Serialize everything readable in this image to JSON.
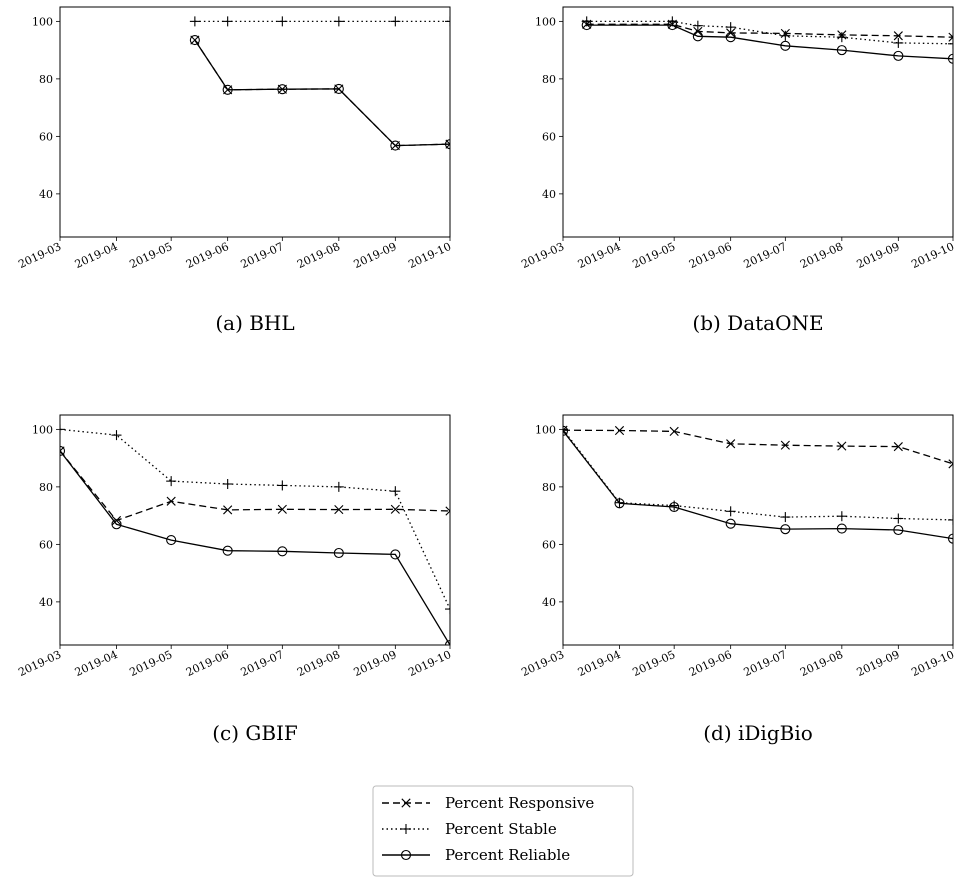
{
  "chart_data": [
    {
      "type": "line",
      "caption": "(a) BHL",
      "x_ticks": [
        "2019-03",
        "2019-04",
        "2019-05",
        "2019-06",
        "2019-07",
        "2019-08",
        "2019-09",
        "2019-10"
      ],
      "y_ticks": [
        40,
        60,
        80,
        100
      ],
      "xlim": [
        "2019-03-01",
        "2019-10-01"
      ],
      "ylim": [
        25,
        105
      ],
      "series": [
        {
          "key": "responsive",
          "x": [
            "2019-05-14",
            "2019-06-01",
            "2019-07-01",
            "2019-08-01",
            "2019-09-01",
            "2019-10-01"
          ],
          "y": [
            93.5,
            76.2,
            76.4,
            76.5,
            56.8,
            57.3
          ]
        },
        {
          "key": "stable",
          "x": [
            "2019-05-14",
            "2019-06-01",
            "2019-07-01",
            "2019-08-01",
            "2019-09-01",
            "2019-10-01"
          ],
          "y": [
            100,
            100,
            100,
            100,
            100,
            100
          ]
        },
        {
          "key": "reliable",
          "x": [
            "2019-05-14",
            "2019-06-01",
            "2019-07-01",
            "2019-08-01",
            "2019-09-01",
            "2019-10-01"
          ],
          "y": [
            93.5,
            76.2,
            76.4,
            76.5,
            56.8,
            57.3
          ]
        }
      ]
    },
    {
      "type": "line",
      "caption": "(b) DataONE",
      "x_ticks": [
        "2019-03",
        "2019-04",
        "2019-05",
        "2019-06",
        "2019-07",
        "2019-08",
        "2019-09",
        "2019-10"
      ],
      "y_ticks": [
        40,
        60,
        80,
        100
      ],
      "xlim": [
        "2019-03-01",
        "2019-10-01"
      ],
      "ylim": [
        25,
        105
      ],
      "series": [
        {
          "key": "responsive",
          "x": [
            "2019-03-14",
            "2019-04-30",
            "2019-05-14",
            "2019-06-01",
            "2019-07-01",
            "2019-08-01",
            "2019-09-01",
            "2019-10-01"
          ],
          "y": [
            99,
            99,
            96.5,
            96,
            95.8,
            95.3,
            95,
            94.5
          ]
        },
        {
          "key": "stable",
          "x": [
            "2019-03-14",
            "2019-04-30",
            "2019-05-14",
            "2019-06-01",
            "2019-07-01",
            "2019-08-01",
            "2019-09-01",
            "2019-10-01"
          ],
          "y": [
            100,
            100,
            98.5,
            98,
            95,
            94.5,
            92.5,
            92.2
          ]
        },
        {
          "key": "reliable",
          "x": [
            "2019-03-14",
            "2019-04-30",
            "2019-05-14",
            "2019-06-01",
            "2019-07-01",
            "2019-08-01",
            "2019-09-01",
            "2019-10-01"
          ],
          "y": [
            98.7,
            98.7,
            94.8,
            94.5,
            91.5,
            90,
            88,
            87
          ]
        }
      ]
    },
    {
      "type": "line",
      "caption": "(c) GBIF",
      "x_ticks": [
        "2019-03",
        "2019-04",
        "2019-05",
        "2019-06",
        "2019-07",
        "2019-08",
        "2019-09",
        "2019-10"
      ],
      "y_ticks": [
        40,
        60,
        80,
        100
      ],
      "xlim": [
        "2019-03-01",
        "2019-10-01"
      ],
      "ylim": [
        25,
        105
      ],
      "series": [
        {
          "key": "responsive",
          "x": [
            "2019-03-01",
            "2019-04-01",
            "2019-05-01",
            "2019-06-01",
            "2019-07-01",
            "2019-08-01",
            "2019-09-01",
            "2019-10-01"
          ],
          "y": [
            92.5,
            68.3,
            75,
            72,
            72.2,
            72.1,
            72.2,
            71.6
          ]
        },
        {
          "key": "stable",
          "x": [
            "2019-03-01",
            "2019-04-01",
            "2019-05-01",
            "2019-06-01",
            "2019-07-01",
            "2019-08-01",
            "2019-09-01",
            "2019-10-01"
          ],
          "y": [
            100,
            98,
            82,
            81,
            80.5,
            80,
            78.5,
            37.5
          ]
        },
        {
          "key": "reliable",
          "x": [
            "2019-03-01",
            "2019-04-01",
            "2019-05-01",
            "2019-06-01",
            "2019-07-01",
            "2019-08-01",
            "2019-09-01",
            "2019-10-01"
          ],
          "y": [
            92.5,
            67,
            61.5,
            57.8,
            57.6,
            57,
            56.5,
            25
          ]
        }
      ]
    },
    {
      "type": "line",
      "caption": "(d) iDigBio",
      "x_ticks": [
        "2019-03",
        "2019-04",
        "2019-05",
        "2019-06",
        "2019-07",
        "2019-08",
        "2019-09",
        "2019-10"
      ],
      "y_ticks": [
        40,
        60,
        80,
        100
      ],
      "xlim": [
        "2019-03-01",
        "2019-10-01"
      ],
      "ylim": [
        25,
        105
      ],
      "series": [
        {
          "key": "responsive",
          "x": [
            "2019-03-01",
            "2019-04-01",
            "2019-05-01",
            "2019-06-01",
            "2019-07-01",
            "2019-08-01",
            "2019-09-01",
            "2019-10-01"
          ],
          "y": [
            99.7,
            99.6,
            99.3,
            95,
            94.5,
            94.2,
            94,
            88
          ]
        },
        {
          "key": "stable",
          "x": [
            "2019-03-01",
            "2019-04-01",
            "2019-05-01",
            "2019-06-01",
            "2019-07-01",
            "2019-08-01",
            "2019-09-01",
            "2019-10-01"
          ],
          "y": [
            100,
            74.5,
            73.5,
            71.5,
            69.5,
            69.8,
            69,
            68.5
          ]
        },
        {
          "key": "reliable",
          "x": [
            "2019-03-01",
            "2019-04-01",
            "2019-05-01",
            "2019-06-01",
            "2019-07-01",
            "2019-08-01",
            "2019-09-01",
            "2019-10-01"
          ],
          "y": [
            99.5,
            74.3,
            73,
            67.2,
            65.3,
            65.5,
            65,
            62
          ]
        }
      ]
    }
  ],
  "legend": {
    "placement": "bottom-center",
    "entries": [
      {
        "key": "responsive",
        "label": "Percent Responsive",
        "marker": "x",
        "line": "dashed"
      },
      {
        "key": "stable",
        "label": "Percent Stable",
        "marker": "plus",
        "line": "dotted"
      },
      {
        "key": "reliable",
        "label": "Percent Reliable",
        "marker": "circle",
        "line": "solid"
      }
    ]
  }
}
